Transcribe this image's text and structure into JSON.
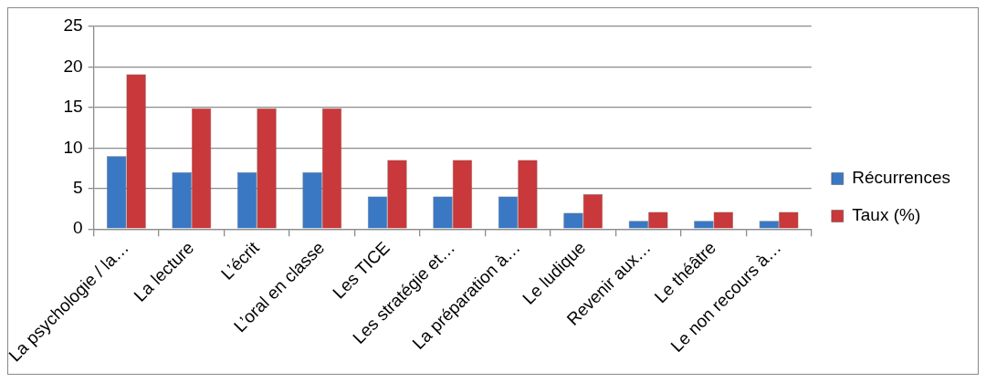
{
  "chart_data": {
    "type": "bar",
    "categories": [
      "La psychologie / la…",
      "La lecture",
      "L’écrit",
      "L’oral en classe",
      "Les TICE",
      "Les stratégie et…",
      "La préparation à…",
      "Le ludique",
      "Revenir aux…",
      "Le théâtre",
      "Le non recours à…"
    ],
    "series": [
      {
        "name": "Récurrences",
        "color": "#3a78c4",
        "values": [
          9,
          7,
          7,
          7,
          4,
          4,
          4,
          2,
          1,
          1,
          1
        ]
      },
      {
        "name": "Taux (%)",
        "color": "#c9383a",
        "values": [
          19.1,
          14.9,
          14.9,
          14.9,
          8.5,
          8.5,
          8.5,
          4.3,
          2.1,
          2.1,
          2.1
        ]
      }
    ],
    "ylim": [
      0,
      25
    ],
    "yticks": [
      0,
      5,
      10,
      15,
      20,
      25
    ],
    "grid": "y",
    "legend": "right"
  }
}
